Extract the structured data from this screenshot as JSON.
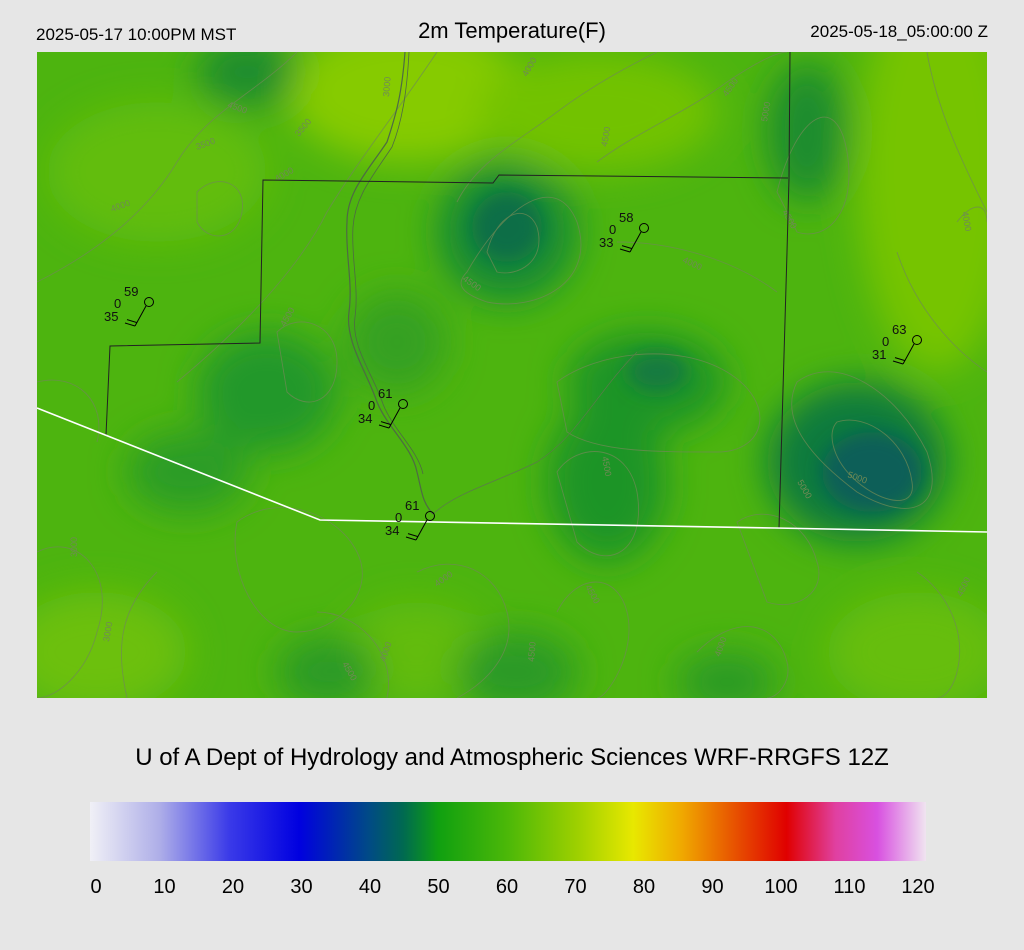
{
  "header": {
    "valid_local": "2025-05-17 10:00PM MST",
    "title": "2m Temperature(F)",
    "valid_utc": "2025-05-18_05:00:00 Z"
  },
  "credit": "U of A Dept of Hydrology and Atmospheric Sciences WRF-RRGFS 12Z",
  "colorbar": {
    "ticks": [
      "0",
      "10",
      "20",
      "30",
      "40",
      "50",
      "60",
      "70",
      "80",
      "90",
      "100",
      "110",
      "120"
    ],
    "stops": [
      {
        "value": 0,
        "color": "#f0f0f6"
      },
      {
        "value": 10,
        "color": "#aeaee8"
      },
      {
        "value": 20,
        "color": "#3a3ae8"
      },
      {
        "value": 30,
        "color": "#0000e0"
      },
      {
        "value": 40,
        "color": "#004a86"
      },
      {
        "value": 45,
        "color": "#006a50"
      },
      {
        "value": 50,
        "color": "#10a010"
      },
      {
        "value": 60,
        "color": "#4cb808"
      },
      {
        "value": 70,
        "color": "#9ed000"
      },
      {
        "value": 78,
        "color": "#e8e800"
      },
      {
        "value": 85,
        "color": "#f0a800"
      },
      {
        "value": 92,
        "color": "#e85800"
      },
      {
        "value": 100,
        "color": "#e00000"
      },
      {
        "value": 107,
        "color": "#e040a0"
      },
      {
        "value": 113,
        "color": "#d850e0"
      },
      {
        "value": 120,
        "color": "#f0e4f0"
      }
    ]
  },
  "stations": [
    {
      "temp": "59",
      "dew": "35",
      "gust": "0"
    },
    {
      "temp": "58",
      "dew": "33",
      "gust": "0"
    },
    {
      "temp": "63",
      "dew": "31",
      "gust": "0"
    },
    {
      "temp": "61",
      "dew": "34",
      "gust": "0"
    },
    {
      "temp": "61",
      "dew": "34",
      "gust": "0"
    }
  ],
  "contour_labels": [
    "4000",
    "4500",
    "3000",
    "3500",
    "4000",
    "4500",
    "4000",
    "4500",
    "5000",
    "4500",
    "3500",
    "4500",
    "4000",
    "4000",
    "4500",
    "5000",
    "5000",
    "4500",
    "3000",
    "3000",
    "4500",
    "4000",
    "4000",
    "4500",
    "4500",
    "4000",
    "4500"
  ],
  "colors": {
    "background": "#e6e6e6",
    "map_base": "#4db40f",
    "boundary": "#ffffff",
    "county": "#222222",
    "contour": "#6f8a55"
  }
}
